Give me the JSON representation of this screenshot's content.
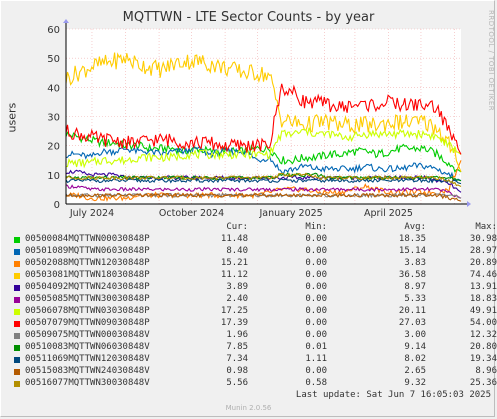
{
  "title": "MQTTWN - LTE Sector Counts - by year",
  "y_axis_label": "users",
  "side_label": "RRDTOOL / TOBI OETIKER",
  "footer": "Munin 2.0.56",
  "legend_headers": {
    "cur": "Cur:",
    "min": "Min:",
    "avg": "Avg:",
    "max": "Max:"
  },
  "last_update": "Last update: Sat Jun  7 16:05:03 2025",
  "chart_data": {
    "type": "line",
    "title": "MQTTWN - LTE Sector Counts - by year",
    "ylabel": "users",
    "ylim": [
      0,
      60
    ],
    "y_ticks": [
      0,
      10,
      20,
      30,
      40,
      50,
      60
    ],
    "x_ticks": [
      "July 2024",
      "October 2024",
      "January 2025",
      "April 2025"
    ],
    "x_range": [
      "2024-06-07",
      "2025-06-07"
    ],
    "grid": true,
    "series": [
      {
        "name": "00500084MQTTWN00030848P",
        "color": "#00cc00",
        "cur": "11.48",
        "min": "0.00",
        "avg": "18.35",
        "max": "30.98",
        "values": [
          24,
          23,
          22,
          21,
          21,
          20,
          20,
          19,
          19,
          19,
          18,
          19,
          18,
          18,
          18,
          18,
          19,
          19,
          15,
          15,
          16,
          16,
          17,
          17,
          18,
          18,
          17,
          18,
          19,
          19,
          19,
          17,
          14,
          11
        ]
      },
      {
        "name": "00501089MQTTWN06030848P",
        "color": "#0066b3",
        "cur": "8.40",
        "min": "0.00",
        "avg": "15.14",
        "max": "28.97",
        "values": [
          17,
          17,
          16,
          18,
          18,
          19,
          18,
          18,
          17,
          18,
          18,
          19,
          17,
          18,
          18,
          18,
          15,
          16,
          11,
          12,
          13,
          12,
          12,
          12,
          12,
          13,
          12,
          12,
          12,
          13,
          13,
          12,
          10,
          8
        ]
      },
      {
        "name": "00502088MQTTWN12030848P",
        "color": "#ff8000",
        "cur": "15.21",
        "min": "0.00",
        "avg": "3.83",
        "max": "20.89",
        "values": [
          3,
          3,
          2,
          2,
          2,
          2,
          3,
          3,
          3,
          3,
          3,
          3,
          3,
          3,
          3,
          3,
          3,
          4,
          5,
          5,
          5,
          4,
          4,
          4,
          5,
          6,
          5,
          4,
          4,
          4,
          4,
          4,
          5,
          15
        ]
      },
      {
        "name": "00503081MQTTWN18030848P",
        "color": "#ffcc00",
        "cur": "11.12",
        "min": "0.00",
        "avg": "36.58",
        "max": "74.46",
        "values": [
          43,
          45,
          47,
          48,
          49,
          50,
          48,
          47,
          46,
          48,
          49,
          49,
          48,
          47,
          46,
          45,
          45,
          44,
          29,
          28,
          27,
          28,
          28,
          27,
          27,
          27,
          27,
          28,
          28,
          28,
          28,
          26,
          21,
          11
        ]
      },
      {
        "name": "00504092MQTTWN24030848P",
        "color": "#330099",
        "cur": "3.89",
        "min": "0.00",
        "avg": "8.97",
        "max": "13.91",
        "values": [
          11,
          11,
          10,
          10,
          10,
          9,
          9,
          9,
          9,
          9,
          9,
          9,
          9,
          9,
          9,
          9,
          9,
          9,
          9,
          9,
          9,
          9,
          9,
          9,
          9,
          9,
          9,
          9,
          9,
          9,
          9,
          8,
          7,
          4
        ]
      },
      {
        "name": "00505085MQTTWN30030848P",
        "color": "#990099",
        "cur": "2.40",
        "min": "0.00",
        "avg": "5.33",
        "max": "18.83",
        "values": [
          6,
          6,
          5,
          5,
          5,
          5,
          5,
          5,
          5,
          5,
          5,
          5,
          5,
          5,
          5,
          5,
          5,
          5,
          5,
          5,
          5,
          5,
          5,
          5,
          5,
          5,
          5,
          5,
          5,
          5,
          5,
          5,
          4,
          2
        ]
      },
      {
        "name": "00506078MQTTWN03030848P",
        "color": "#ccff00",
        "cur": "17.25",
        "min": "0.00",
        "avg": "20.11",
        "max": "49.91",
        "values": [
          14,
          14,
          14,
          15,
          15,
          15,
          16,
          16,
          16,
          16,
          17,
          17,
          17,
          17,
          17,
          17,
          17,
          17,
          24,
          24,
          25,
          24,
          24,
          23,
          23,
          24,
          24,
          24,
          24,
          24,
          24,
          23,
          20,
          17
        ]
      },
      {
        "name": "00507079MQTTWN09030848P",
        "color": "#ff0000",
        "cur": "17.39",
        "min": "0.00",
        "avg": "27.03",
        "max": "54.00",
        "values": [
          25,
          24,
          23,
          22,
          22,
          21,
          21,
          22,
          22,
          22,
          21,
          21,
          21,
          20,
          20,
          20,
          20,
          20,
          40,
          38,
          35,
          35,
          34,
          33,
          34,
          34,
          34,
          35,
          34,
          34,
          34,
          33,
          25,
          17
        ]
      },
      {
        "name": "00509075MQTTWN00030848V",
        "color": "#808080",
        "cur": "1.96",
        "min": "0.00",
        "avg": "3.00",
        "max": "12.32",
        "values": [
          3,
          3,
          3,
          3,
          3,
          3,
          3,
          3,
          3,
          3,
          3,
          3,
          3,
          3,
          3,
          3,
          3,
          3,
          3,
          3,
          3,
          3,
          3,
          3,
          3,
          3,
          3,
          3,
          3,
          3,
          3,
          3,
          3,
          2
        ]
      },
      {
        "name": "00510083MQTTWN06030848V",
        "color": "#008f00",
        "cur": "7.85",
        "min": "0.01",
        "avg": "9.14",
        "max": "20.80",
        "values": [
          9,
          9,
          9,
          9,
          9,
          9,
          9,
          9,
          9,
          9,
          9,
          9,
          9,
          9,
          9,
          9,
          9,
          9,
          10,
          10,
          10,
          10,
          9,
          9,
          9,
          9,
          9,
          9,
          9,
          9,
          9,
          9,
          9,
          8
        ]
      },
      {
        "name": "00511069MQTTWN12030848V",
        "color": "#00487d",
        "cur": "7.34",
        "min": "1.11",
        "avg": "8.02",
        "max": "19.34",
        "values": [
          8,
          8,
          8,
          8,
          8,
          8,
          8,
          8,
          8,
          8,
          8,
          8,
          8,
          8,
          8,
          8,
          8,
          8,
          8,
          8,
          8,
          8,
          8,
          8,
          8,
          8,
          8,
          8,
          8,
          8,
          8,
          8,
          8,
          7
        ]
      },
      {
        "name": "00515083MQTTWN24030848V",
        "color": "#b35a00",
        "cur": "0.98",
        "min": "0.00",
        "avg": "2.65",
        "max": "8.96",
        "values": [
          3,
          3,
          3,
          3,
          3,
          3,
          3,
          3,
          3,
          3,
          3,
          3,
          3,
          3,
          3,
          3,
          3,
          3,
          3,
          3,
          3,
          3,
          3,
          3,
          3,
          3,
          3,
          3,
          3,
          3,
          3,
          3,
          2,
          1
        ]
      },
      {
        "name": "00516077MQTTWN30030848V",
        "color": "#b38f00",
        "cur": "5.56",
        "min": "0.58",
        "avg": "9.32",
        "max": "25.36",
        "values": [
          9,
          9,
          9,
          9,
          9,
          9,
          9,
          9,
          9,
          9,
          9,
          9,
          9,
          9,
          9,
          9,
          9,
          9,
          10,
          10,
          10,
          9,
          9,
          9,
          9,
          9,
          9,
          9,
          9,
          9,
          9,
          9,
          8,
          6
        ]
      }
    ]
  }
}
